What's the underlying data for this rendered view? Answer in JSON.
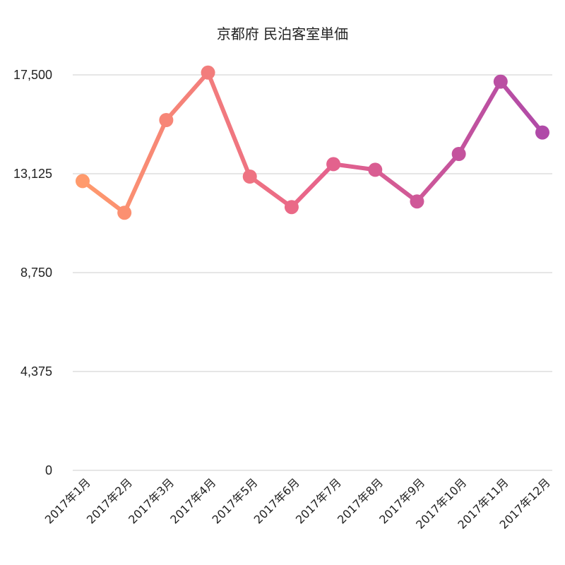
{
  "chart_data": {
    "type": "line",
    "title": "京都府 民泊客室単価",
    "xlabel": "",
    "ylabel": "",
    "categories": [
      "2017年1月",
      "2017年2月",
      "2017年3月",
      "2017年4月",
      "2017年5月",
      "2017年6月",
      "2017年7月",
      "2017年8月",
      "2017年9月",
      "2017年10月",
      "2017年11月",
      "2017年12月"
    ],
    "values": [
      12800,
      11400,
      15500,
      17600,
      13000,
      11650,
      13550,
      13300,
      11900,
      14000,
      17200,
      14950
    ],
    "ylim": [
      0,
      17500
    ],
    "yticks": [
      "0",
      "4,375",
      "8,750",
      "13,125",
      "17,500"
    ],
    "ytick_values": [
      0,
      4375,
      8750,
      13125,
      17500
    ],
    "grid": true,
    "legend": "none",
    "colors": {
      "gradient_start": "#FF9A6C",
      "gradient_mid": "#E8648A",
      "gradient_end": "#B04AA8",
      "gridline": "#cccccc"
    }
  }
}
